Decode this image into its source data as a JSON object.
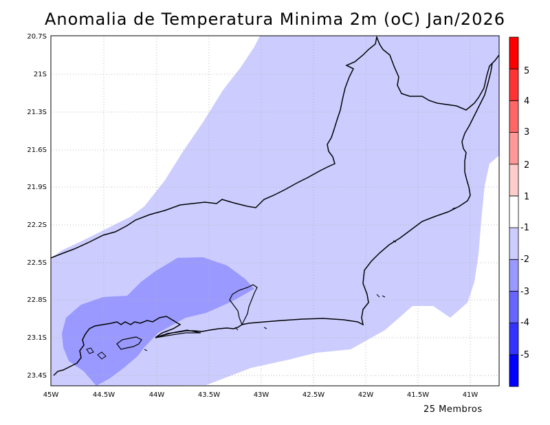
{
  "title": "Anomalia de Temperatura Minima 2m (oC) Jan/2026",
  "footer": "25 Membros",
  "axes": {
    "lon_ticks": [
      "45W",
      "44.5W",
      "44W",
      "43.5W",
      "43W",
      "42.5W",
      "42W",
      "41.5W",
      "41W"
    ],
    "lat_ticks": [
      "20.7S",
      "21S",
      "21.3S",
      "21.6S",
      "21.9S",
      "22.2S",
      "22.5S",
      "22.8S",
      "23.1S",
      "23.4S"
    ]
  },
  "legend": {
    "labels": [
      "5",
      "4",
      "3",
      "2",
      "1",
      "-1",
      "-2",
      "-3",
      "-4",
      "-5"
    ],
    "colors": [
      "#0000ff",
      "#3333ff",
      "#6666ff",
      "#9999ff",
      "#ccccff",
      "#ffffff",
      "#ffcccc",
      "#ff9999",
      "#ff6666",
      "#ff3333",
      "#ff0000"
    ]
  },
  "colors": {
    "shade_minus1_minus2": "#ccccff",
    "shade_minus2_minus3": "#9999ff",
    "coastline": "#000000",
    "grid": "#b4b4b4"
  }
}
